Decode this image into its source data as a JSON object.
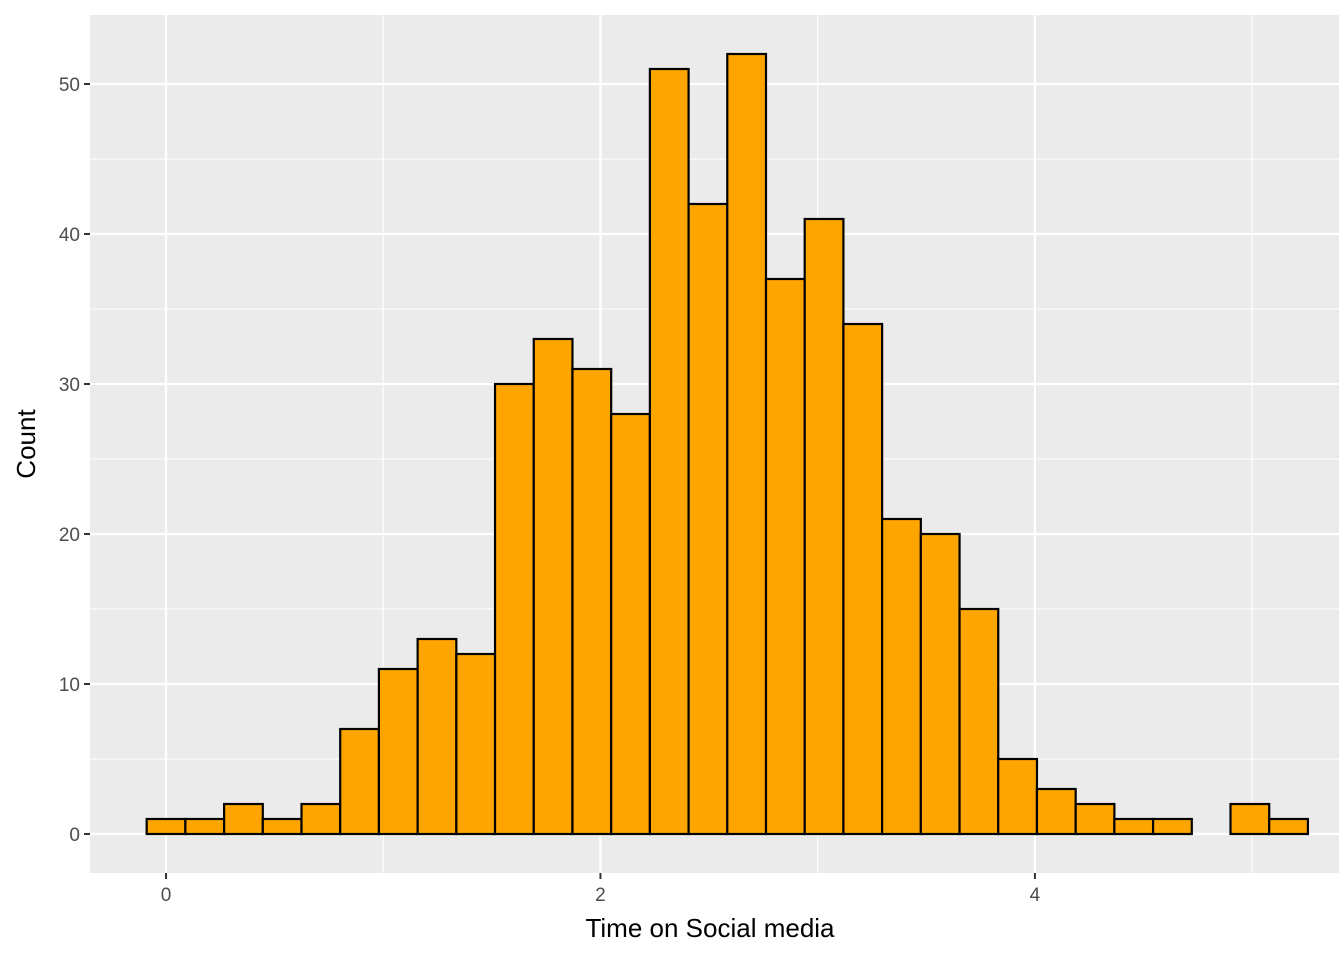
{
  "chart_data": {
    "type": "histogram",
    "xlabel": "Time on Social media",
    "ylabel": "Count",
    "xlim": [
      -0.35,
      5.4
    ],
    "ylim": [
      -2.6,
      54.6
    ],
    "x_ticks": [
      0,
      2,
      4
    ],
    "x_tick_labels": [
      "0",
      "2",
      "4"
    ],
    "y_ticks": [
      0,
      10,
      20,
      30,
      40,
      50
    ],
    "y_tick_labels": [
      "0",
      "10",
      "20",
      "30",
      "40",
      "50"
    ],
    "bin_start": -0.0891,
    "bin_width": 0.1782,
    "counts": [
      1,
      1,
      2,
      1,
      2,
      7,
      11,
      13,
      12,
      30,
      33,
      31,
      28,
      51,
      42,
      52,
      37,
      41,
      34,
      21,
      20,
      15,
      5,
      3,
      2,
      1,
      1,
      0,
      2,
      1
    ],
    "fill_color": "#FFA500",
    "edge_color": "#000000",
    "panel_color": "#EBEBEB",
    "grid_color": "#FFFFFF",
    "grid": true
  }
}
